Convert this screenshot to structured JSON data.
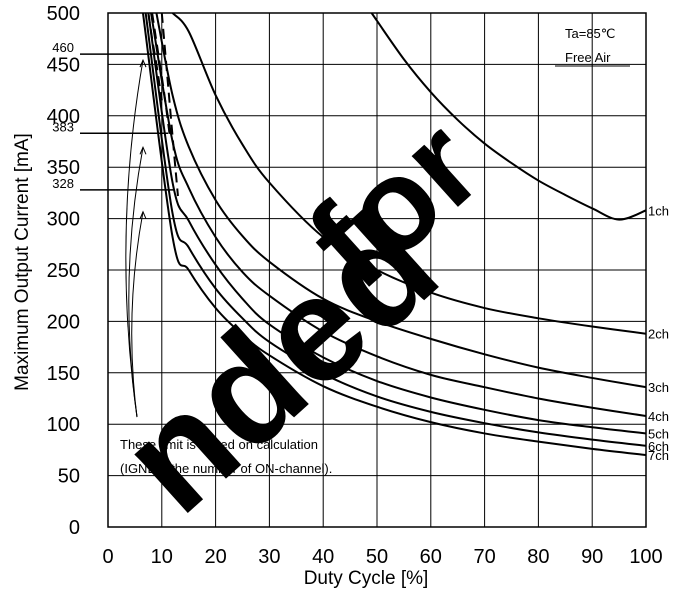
{
  "chart_data": {
    "type": "line",
    "xlabel": "Duty Cycle [%]",
    "ylabel": "Maximum Output Current [mA]",
    "xlim": [
      0,
      100
    ],
    "ylim": [
      0,
      500
    ],
    "x_ticks": [
      "0",
      "10",
      "20",
      "30",
      "40",
      "50",
      "60",
      "70",
      "80",
      "90",
      "100"
    ],
    "y_ticks": [
      "0",
      "50",
      "100",
      "150",
      "200",
      "250",
      "300",
      "350",
      "400",
      "450",
      "500"
    ],
    "grid": true,
    "conditions": [
      "Ta=85℃",
      "Free Air"
    ],
    "note_lines": [
      "These limit is based on calculation",
      "(IGND ÷ the number of ON-channel)."
    ],
    "limit_labels": [
      {
        "text": "460",
        "value": 460
      },
      {
        "text": "383",
        "value": 383
      },
      {
        "text": "328",
        "value": 328
      }
    ],
    "series": [
      {
        "name": "1ch",
        "x": [
          49,
          55,
          60,
          65,
          70,
          75,
          80,
          85,
          90,
          95,
          100
        ],
        "y": [
          500,
          455,
          423,
          396,
          373,
          354,
          337,
          323,
          310,
          299,
          308
        ]
      },
      {
        "name": "2ch",
        "x": [
          12,
          15,
          20,
          25,
          30,
          40,
          50,
          60,
          70,
          80,
          90,
          100
        ],
        "y": [
          500,
          482,
          420,
          372,
          335,
          282,
          250,
          228,
          213,
          203,
          195,
          188
        ]
      },
      {
        "name": "3ch",
        "x": [
          9,
          12,
          15,
          20,
          25,
          30,
          40,
          50,
          60,
          70,
          80,
          90,
          100
        ],
        "y": [
          500,
          420,
          370,
          318,
          283,
          258,
          222,
          200,
          183,
          168,
          155,
          145,
          136
        ]
      },
      {
        "name": "4ch",
        "x": [
          8,
          12,
          15,
          20,
          25,
          30,
          40,
          50,
          60,
          70,
          80,
          90,
          100
        ],
        "y": [
          500,
          375,
          330,
          282,
          248,
          225,
          190,
          166,
          148,
          136,
          125,
          116,
          108
        ]
      },
      {
        "name": "5ch",
        "x": [
          7.5,
          12,
          15,
          20,
          25,
          30,
          40,
          50,
          60,
          70,
          80,
          90,
          100
        ],
        "y": [
          500,
          335,
          298,
          255,
          222,
          197,
          165,
          142,
          126,
          114,
          104,
          97,
          91
        ]
      },
      {
        "name": "6ch",
        "x": [
          7,
          12,
          15,
          20,
          25,
          30,
          40,
          50,
          60,
          70,
          80,
          90,
          100
        ],
        "y": [
          500,
          305,
          272,
          232,
          203,
          180,
          149,
          127,
          112,
          101,
          92,
          85,
          79
        ]
      },
      {
        "name": "7ch",
        "x": [
          6.5,
          12,
          15,
          20,
          25,
          30,
          40,
          50,
          60,
          70,
          80,
          90,
          100
        ],
        "y": [
          500,
          282,
          250,
          213,
          187,
          167,
          137,
          117,
          102,
          91,
          83,
          76,
          70
        ]
      }
    ],
    "limit_curves": [
      {
        "x": [
          7.5,
          8.2,
          9.0,
          10.0
        ],
        "y": [
          500,
          475,
          450,
          415
        ]
      },
      {
        "x": [
          8.2,
          9.5,
          10.5,
          11.5
        ],
        "y": [
          500,
          455,
          420,
          380
        ]
      },
      {
        "x": [
          10.0,
          11.0,
          12.0,
          13.0
        ],
        "y": [
          500,
          440,
          380,
          322
        ]
      }
    ]
  },
  "watermark": {
    "words": [
      "nded",
      "for",
      "5"
    ],
    "color": "#000000"
  }
}
